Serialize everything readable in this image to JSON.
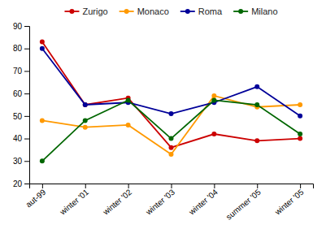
{
  "chart_data": {
    "type": "line",
    "categories": [
      "aut-99",
      "winter '01",
      "winter '02",
      "winter '03",
      "winter '04",
      "summer '05",
      "winter '05"
    ],
    "series": [
      {
        "name": "Zurigo",
        "color": "#cc0000",
        "marker": "circle",
        "values": [
          83,
          55,
          58,
          36,
          42,
          39,
          40
        ]
      },
      {
        "name": "Monaco",
        "color": "#ff9900",
        "marker": "circle",
        "values": [
          48,
          45,
          46,
          33,
          59,
          54,
          55
        ]
      },
      {
        "name": "Roma",
        "color": "#000099",
        "marker": "circle",
        "values": [
          80,
          55,
          56,
          51,
          56,
          63,
          50
        ]
      },
      {
        "name": "Milano",
        "color": "#006600",
        "marker": "circle",
        "values": [
          30,
          48,
          57,
          40,
          57,
          55,
          42
        ]
      }
    ],
    "ylim": [
      20,
      90
    ],
    "yticks": [
      20,
      30,
      40,
      50,
      60,
      70,
      80,
      90
    ],
    "grid": false,
    "legend": "top"
  }
}
